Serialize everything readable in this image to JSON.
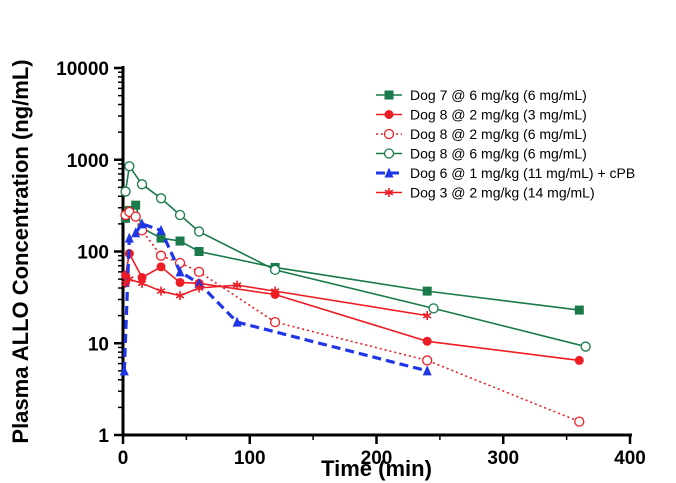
{
  "chart_data": {
    "type": "line",
    "title": "",
    "xlabel": "Time (min)",
    "ylabel": "Plasma ALLO Concentration (ng/mL)",
    "xlim": [
      0,
      400
    ],
    "ylim": [
      1,
      10000
    ],
    "yscale": "log",
    "x_ticks": [
      "0",
      "100",
      "200",
      "300",
      "400"
    ],
    "y_ticks": [
      "1",
      "10",
      "100",
      "1000",
      "10000"
    ],
    "grid": false,
    "legend_position": "top-right",
    "series": [
      {
        "name": "Dog 7 @ 6 mg/kg (6 mg/mL)",
        "color": "#1a7a4a",
        "marker": "square-filled",
        "line": "solid",
        "x": [
          2,
          5,
          10,
          15,
          30,
          45,
          60,
          120,
          240,
          360
        ],
        "y": [
          230,
          280,
          320,
          180,
          140,
          130,
          100,
          67,
          37,
          23
        ]
      },
      {
        "name": "Dog 8 @ 2 mg/kg (3 mg/mL)",
        "color": "#ee1c25",
        "marker": "circle-filled",
        "line": "solid",
        "x": [
          2,
          5,
          15,
          30,
          45,
          60,
          120,
          240,
          360
        ],
        "y": [
          55,
          95,
          52,
          68,
          46,
          45,
          34,
          10.5,
          6.5
        ]
      },
      {
        "name": "Dog 8 @ 2 mg/kg (6 mg/mL)",
        "color": "#ee1c25",
        "marker": "circle-open",
        "line": "dotted",
        "x": [
          2,
          5,
          10,
          15,
          30,
          45,
          60,
          120,
          240,
          360
        ],
        "y": [
          250,
          270,
          240,
          170,
          90,
          75,
          60,
          17,
          6.5,
          1.4
        ]
      },
      {
        "name": "Dog 8 @ 6 mg/kg (6 mg/mL)",
        "color": "#1a7a4a",
        "marker": "circle-open",
        "line": "solid",
        "x": [
          2,
          5,
          15,
          30,
          45,
          60,
          120,
          245,
          365
        ],
        "y": [
          450,
          850,
          540,
          380,
          250,
          165,
          63,
          24,
          9.2
        ]
      },
      {
        "name": "Dog 6 @ 1 mg/kg (11 mg/mL) + cPB",
        "color": "#1f35e8",
        "marker": "triangle-filled",
        "line": "dashed",
        "x": [
          1,
          5,
          10,
          15,
          30,
          45,
          60,
          90,
          240
        ],
        "y": [
          5,
          140,
          160,
          200,
          170,
          60,
          45,
          17,
          5
        ]
      },
      {
        "name": "Dog 3 @ 2 mg/kg (14 mg/mL)",
        "color": "#ee1c25",
        "marker": "asterisk",
        "line": "solid",
        "x": [
          2,
          5,
          15,
          30,
          45,
          60,
          90,
          120,
          240
        ],
        "y": [
          45,
          50,
          45,
          37,
          33,
          40,
          43,
          37,
          20
        ]
      }
    ]
  }
}
